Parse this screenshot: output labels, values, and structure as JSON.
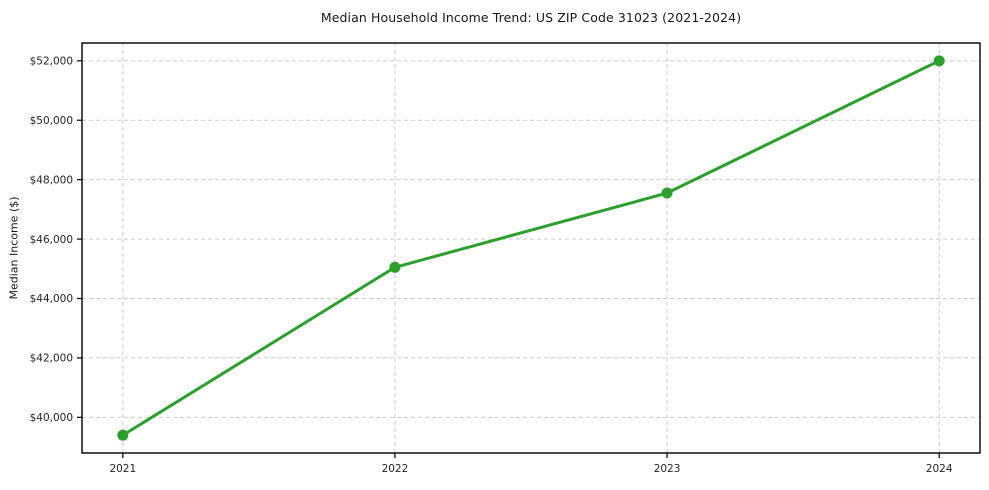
{
  "chart_data": {
    "type": "line",
    "title": "Median Household Income Trend: US ZIP Code 31023 (2021-2024)",
    "xlabel": "",
    "ylabel": "Median Income ($)",
    "x": [
      2021,
      2022,
      2023,
      2024
    ],
    "categories": [
      "2021",
      "2022",
      "2023",
      "2024"
    ],
    "series": [
      {
        "name": "Median Household Income",
        "values": [
          39400,
          45050,
          47550,
          52000
        ]
      }
    ],
    "xlim": [
      2020.85,
      2024.15
    ],
    "ylim": [
      38800,
      52600
    ],
    "xtick_values": [
      2021,
      2022,
      2023,
      2024
    ],
    "xtick_labels": [
      "2021",
      "2022",
      "2023",
      "2024"
    ],
    "ytick_values": [
      40000,
      42000,
      44000,
      46000,
      48000,
      50000,
      52000
    ],
    "ytick_labels": [
      "$40,000",
      "$42,000",
      "$44,000",
      "$46,000",
      "$48,000",
      "$50,000",
      "$52,000"
    ],
    "grid": true,
    "grid_style": "dashed",
    "legend": "none",
    "colors": {
      "line": "#2ca02c",
      "marker": "#2ca02c",
      "grid": "#cccccc",
      "axis": "#000000",
      "text": "#262626",
      "background": "#ffffff"
    },
    "line_width": 3,
    "marker_radius": 5.5
  }
}
